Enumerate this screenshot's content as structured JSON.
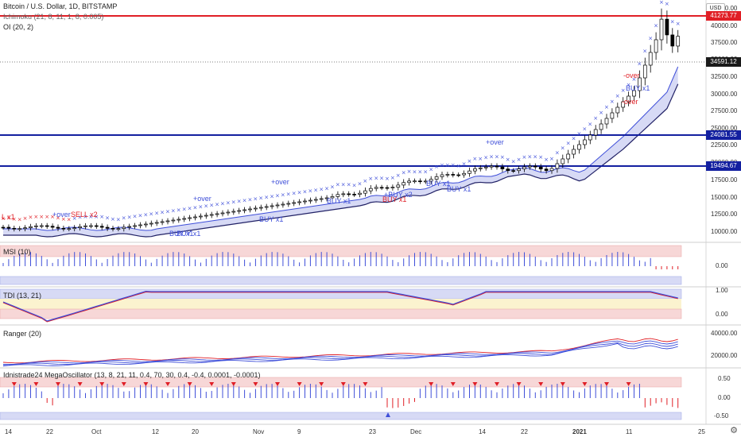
{
  "header": {
    "symbol": "Bitcoin / U.S. Dollar, 1D, BITSTAMP",
    "indicator_1": "Ichimoku (21, 8, 11, 1, 8, 0.005)",
    "indicator_2": "OI (20, 2)",
    "currency_label": "USD"
  },
  "price_axis": {
    "ticks": [
      "42500.00",
      "40000.00",
      "37500.00",
      "35000.00",
      "32500.00",
      "30000.00",
      "27500.00",
      "25000.00",
      "22500.00",
      "20000.00",
      "17500.00",
      "15000.00",
      "12500.00",
      "10000.00"
    ],
    "tag_41273": "41273.77",
    "tag_current": "34591.12",
    "tag_24081": "24081.55",
    "tag_19494": "19494.67"
  },
  "date_axis": [
    "14",
    "22",
    "Oct",
    "12",
    "20",
    "Nov",
    "9",
    "23",
    "Dec",
    "14",
    "22",
    "2021",
    "11",
    "25"
  ],
  "signals": {
    "sell_x1": "L x1",
    "over_1": "+over",
    "sell_x2": "SELL x2",
    "buy_x1_a": "BUY x1",
    "buy_x1_b": "BUY x1",
    "over_2": "+over",
    "buy_x1_c": "BUY x1",
    "over_3": "+over",
    "buy_x1_d": "BUY x1",
    "buy_x2": "+BUY x2",
    "buy_x1_e": "BUY x1",
    "buy_x1_f": "BUY x1",
    "buy_x1_g": "BUY x1",
    "over_4": "+over",
    "over_5": "-over",
    "buy_x1_h": "BUY x1",
    "over_6": "-over"
  },
  "panes": {
    "msi": {
      "title": "MSI (10)",
      "tick": "0.00"
    },
    "tdi": {
      "title": "TDI (13, 21)",
      "tick_top": "1.00",
      "tick_bottom": "0.00"
    },
    "ranger": {
      "title": "Ranger (20)",
      "tick_top": "40000.00",
      "tick_bottom": "20000.00"
    },
    "mega": {
      "title": "Idnistrade24 MegaOscillator (13, 8, 21, 11, 0.4, 70, 30, 0.4, -0.4, 0.0001, -0.0001)",
      "tick_top": "0.50",
      "tick_mid": "0.00",
      "tick_bottom": "-0.50"
    }
  },
  "colors": {
    "red_line": "#e01f26",
    "blue_line": "#1320a0",
    "cross": "#3f4fd9",
    "cloud": "#c9cdf2",
    "up": "#ffffff",
    "down": "#000000"
  },
  "icons": [
    "gear-icon"
  ]
}
